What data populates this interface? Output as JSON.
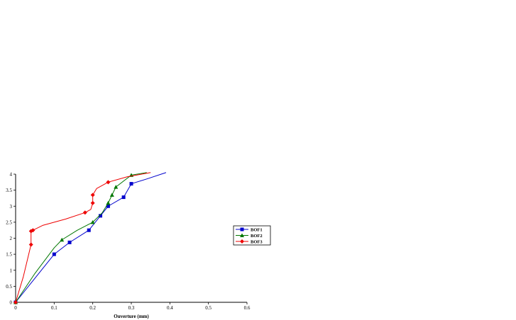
{
  "chart_data": {
    "type": "line",
    "title": "",
    "xlabel": "Ouverture (mm)",
    "ylabel": "",
    "xlim": [
      0,
      0.6
    ],
    "ylim": [
      0,
      4
    ],
    "x_ticks": [
      "0",
      "0.1",
      "0.2",
      "0.3",
      "0.4",
      "0.5",
      "0.6"
    ],
    "y_ticks": [
      "0",
      "0.5",
      "1",
      "1.5",
      "2",
      "2.5",
      "3",
      "3.5",
      "4"
    ],
    "grid": false,
    "legend_position": "right",
    "series": [
      {
        "name": "BOF1",
        "color": "#0000cc",
        "marker": "square",
        "curve": [
          [
            0,
            0
          ],
          [
            0.05,
            0.75
          ],
          [
            0.1,
            1.5
          ],
          [
            0.14,
            1.87
          ],
          [
            0.19,
            2.25
          ],
          [
            0.22,
            2.7
          ],
          [
            0.24,
            3.0
          ],
          [
            0.28,
            3.28
          ],
          [
            0.3,
            3.7
          ],
          [
            0.34,
            3.85
          ],
          [
            0.39,
            4.05
          ]
        ],
        "markers": [
          [
            0,
            0
          ],
          [
            0.1,
            1.5
          ],
          [
            0.14,
            1.87
          ],
          [
            0.19,
            2.25
          ],
          [
            0.22,
            2.7
          ],
          [
            0.24,
            3.0
          ],
          [
            0.28,
            3.28
          ],
          [
            0.3,
            3.7
          ]
        ]
      },
      {
        "name": "BOF2",
        "color": "#007700",
        "marker": "triangle",
        "curve": [
          [
            0,
            0
          ],
          [
            0.05,
            0.9
          ],
          [
            0.1,
            1.7
          ],
          [
            0.12,
            1.95
          ],
          [
            0.16,
            2.25
          ],
          [
            0.2,
            2.5
          ],
          [
            0.225,
            2.8
          ],
          [
            0.24,
            3.1
          ],
          [
            0.25,
            3.35
          ],
          [
            0.26,
            3.6
          ],
          [
            0.3,
            3.97
          ],
          [
            0.34,
            4.05
          ]
        ],
        "markers": [
          [
            0,
            0
          ],
          [
            0.12,
            1.95
          ],
          [
            0.2,
            2.5
          ],
          [
            0.24,
            3.1
          ],
          [
            0.25,
            3.35
          ],
          [
            0.26,
            3.6
          ],
          [
            0.3,
            3.97
          ]
        ]
      },
      {
        "name": "BOF3",
        "color": "#ee0000",
        "marker": "diamond",
        "curve": [
          [
            0,
            0
          ],
          [
            0.02,
            0.8
          ],
          [
            0.04,
            1.8
          ],
          [
            0.04,
            2.25
          ],
          [
            0.045,
            2.25
          ],
          [
            0.07,
            2.4
          ],
          [
            0.13,
            2.6
          ],
          [
            0.18,
            2.8
          ],
          [
            0.195,
            2.9
          ],
          [
            0.2,
            3.1
          ],
          [
            0.2,
            3.35
          ],
          [
            0.21,
            3.55
          ],
          [
            0.24,
            3.75
          ],
          [
            0.29,
            3.92
          ],
          [
            0.35,
            4.05
          ]
        ],
        "markers": [
          [
            0,
            0
          ],
          [
            0.04,
            1.8
          ],
          [
            0.04,
            2.22
          ],
          [
            0.045,
            2.25
          ],
          [
            0.18,
            2.8
          ],
          [
            0.2,
            3.1
          ],
          [
            0.2,
            3.35
          ],
          [
            0.24,
            3.75
          ]
        ]
      }
    ]
  }
}
